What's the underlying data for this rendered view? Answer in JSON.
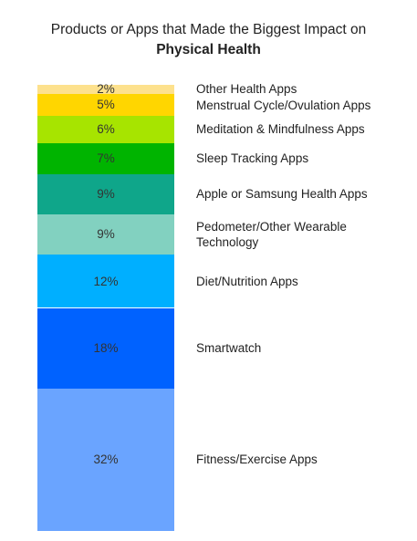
{
  "chart_data": {
    "type": "bar",
    "subtype": "100%-stacked-single-column",
    "title": "Products or Apps that Made the Biggest Impact on",
    "subtitle": "Physical Health",
    "unit": "%",
    "segments": [
      {
        "name": "Other Health Apps",
        "value": 2,
        "label": "2%",
        "color": "#FDE18D"
      },
      {
        "name": "Menstrual Cycle/Ovulation Apps",
        "value": 5,
        "label": "5%",
        "color": "#FFD600"
      },
      {
        "name": "Meditation & Mindfulness Apps",
        "value": 6,
        "label": "6%",
        "color": "#A7E400"
      },
      {
        "name": "Sleep Tracking Apps",
        "value": 7,
        "label": "7%",
        "color": "#00B400"
      },
      {
        "name": "Apple or Samsung Health Apps",
        "value": 9,
        "label": "9%",
        "color": "#0FA68A"
      },
      {
        "name": "Pedometer/Other Wearable Technology",
        "value": 9,
        "label": "9%",
        "color": "#82D1C0"
      },
      {
        "name": "Diet/Nutrition Apps",
        "value": 12,
        "label": "12%",
        "color": "#00AFFF"
      },
      {
        "name": "Smartwatch",
        "value": 18,
        "label": "18%",
        "color": "#0062FF"
      },
      {
        "name": "Fitness/Exercise Apps",
        "value": 32,
        "label": "32%",
        "color": "#6AA4FF"
      }
    ]
  }
}
